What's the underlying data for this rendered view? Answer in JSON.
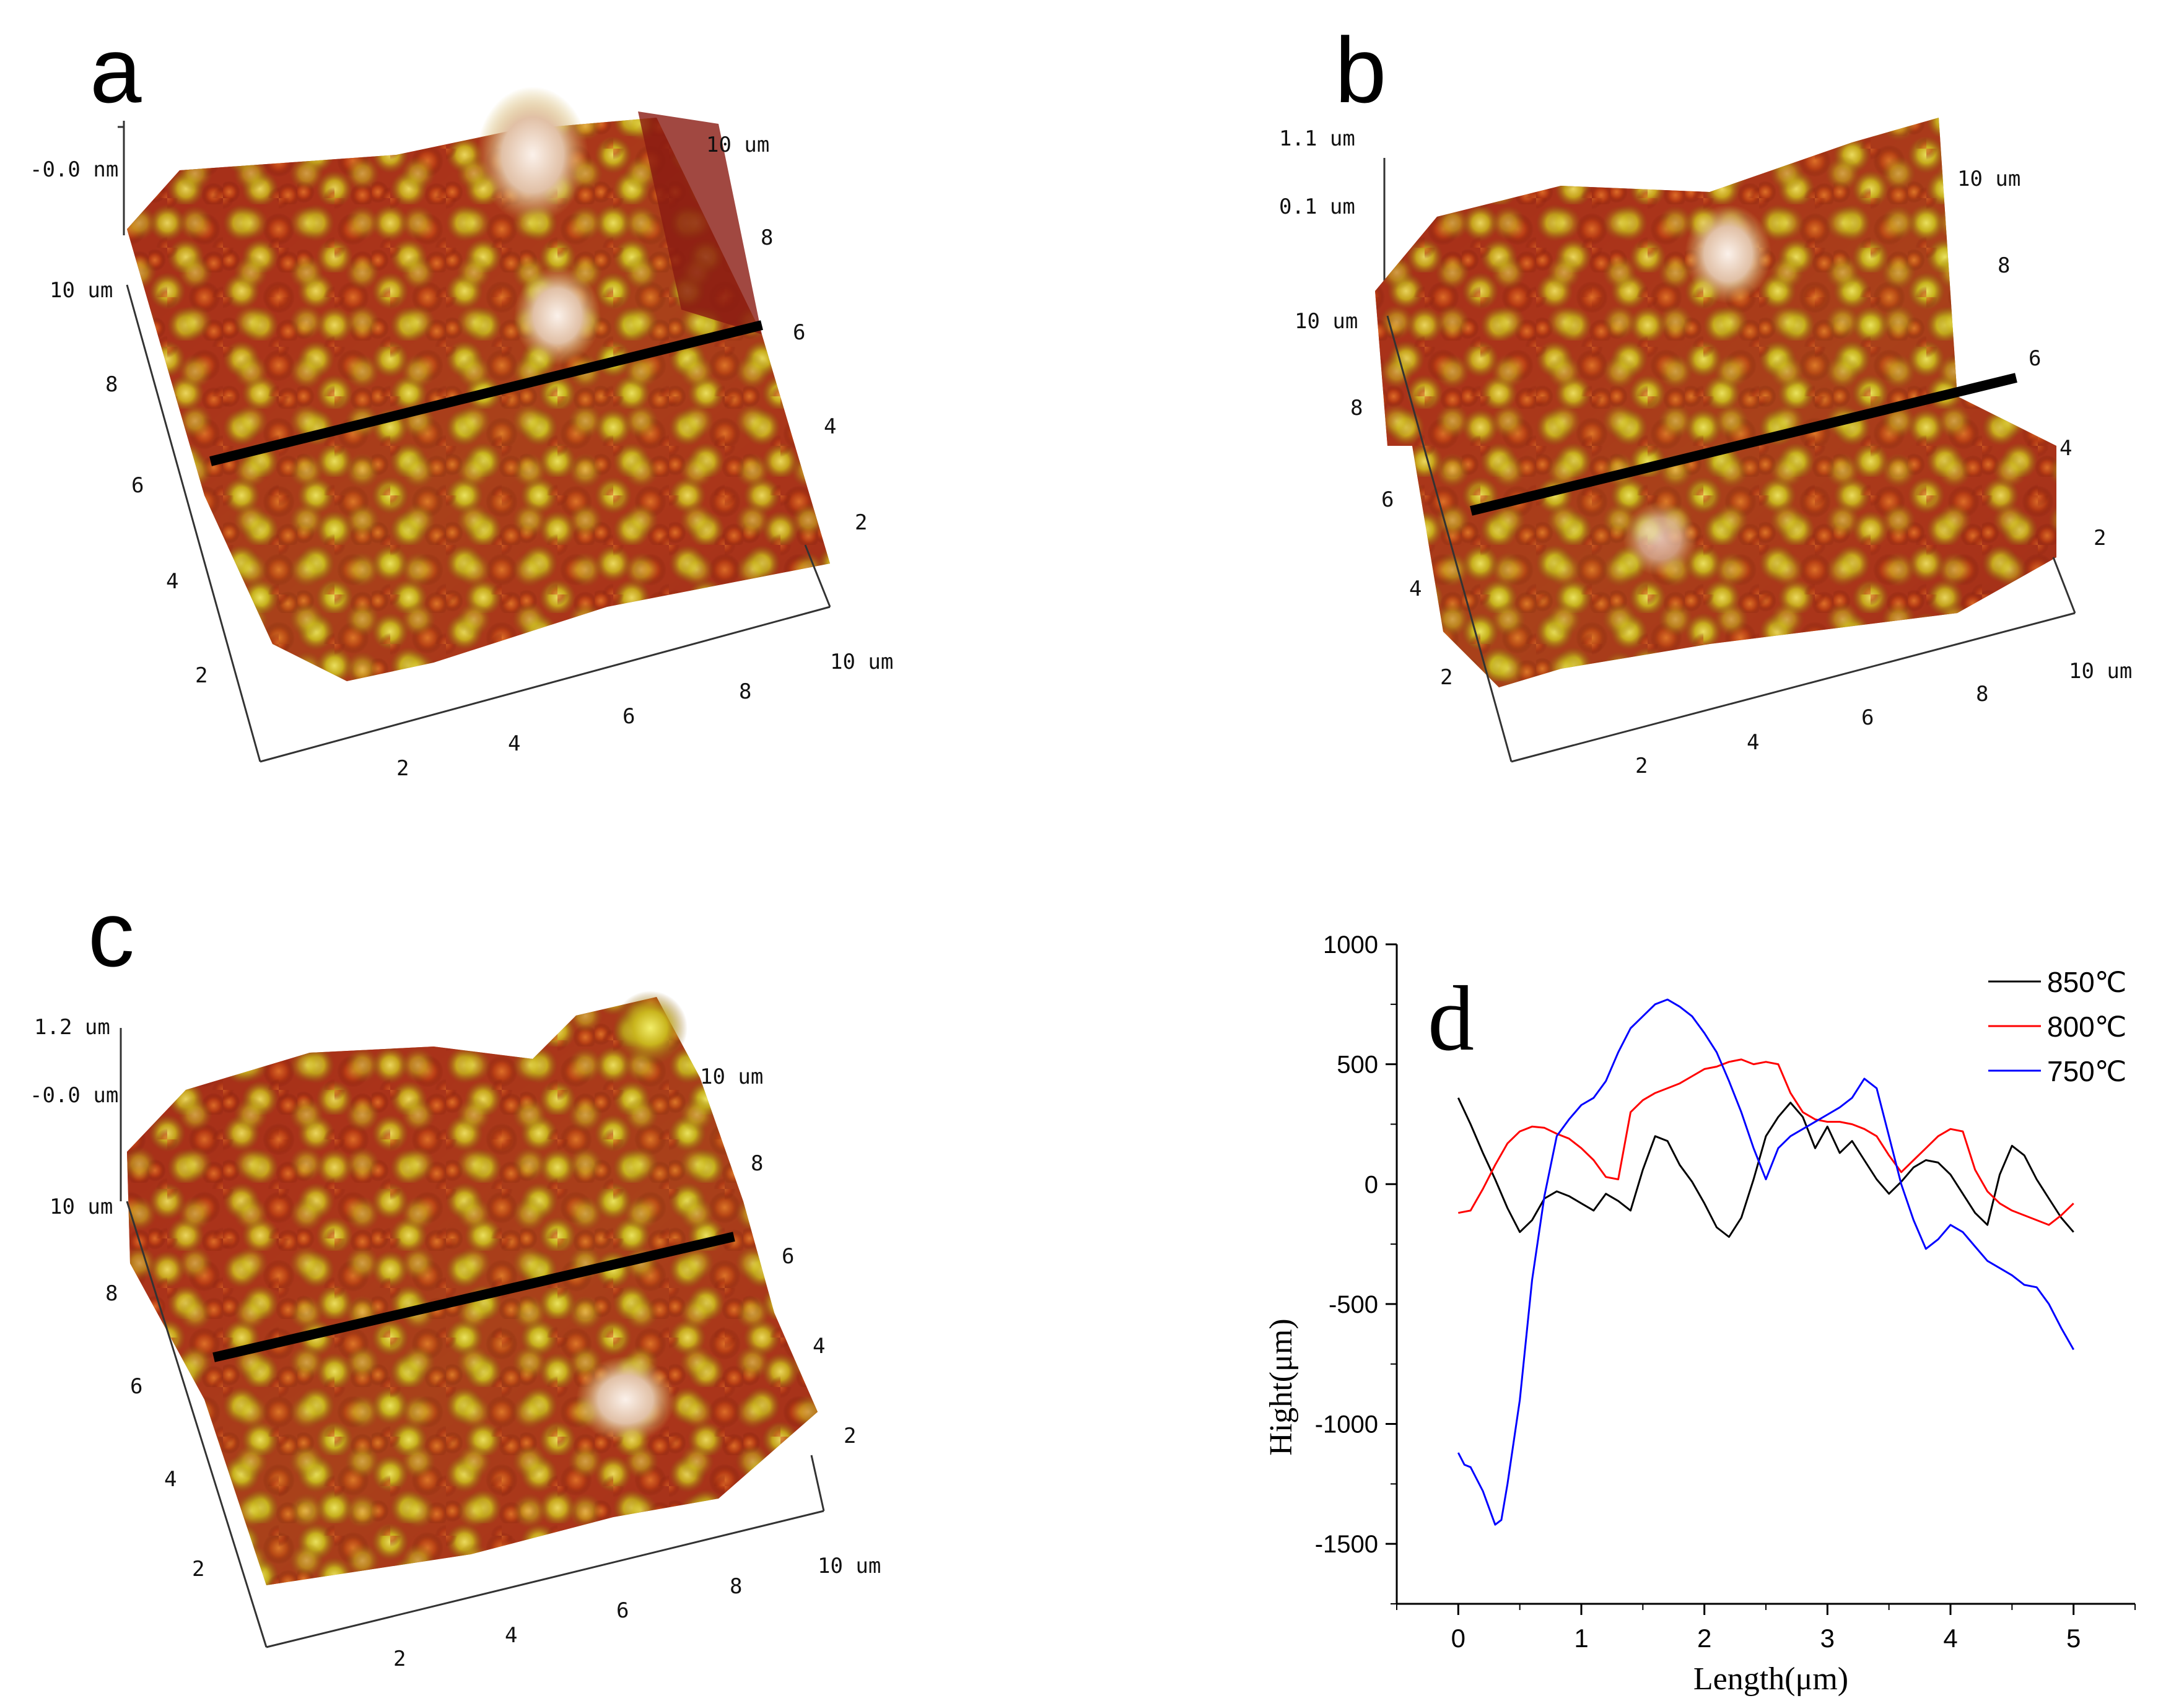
{
  "panels": {
    "a": {
      "letter": "a",
      "z_labels": [
        "-0.0 nm"
      ],
      "corner_labels": [
        "10 um",
        "10 um",
        "10 um"
      ],
      "left_ticks": [
        "8",
        "6",
        "4",
        "2"
      ],
      "bottom_ticks": [
        "2",
        "4",
        "6",
        "8"
      ],
      "right_ticks": [
        "8",
        "6",
        "4",
        "2"
      ]
    },
    "b": {
      "letter": "b",
      "z_labels": [
        "1.1 um",
        "0.1 um"
      ],
      "corner_labels": [
        "10 um",
        "10 um",
        "10 um"
      ],
      "left_ticks": [
        "8",
        "6",
        "4",
        "2"
      ],
      "bottom_ticks": [
        "2",
        "4",
        "6",
        "8"
      ],
      "right_ticks": [
        "8",
        "6",
        "4",
        "2"
      ]
    },
    "c": {
      "letter": "c",
      "z_labels": [
        "1.2 um",
        "-0.0 um"
      ],
      "corner_labels": [
        "10 um",
        "10 um",
        "10 um"
      ],
      "left_ticks": [
        "8",
        "6",
        "4",
        "2"
      ],
      "bottom_ticks": [
        "2",
        "4",
        "6",
        "8"
      ],
      "right_ticks": [
        "8",
        "6",
        "4",
        "2"
      ]
    }
  },
  "colors": {
    "surface_dark": "#8b1a10",
    "surface_mid": "#c8561a",
    "surface_light": "#d6c21e",
    "surface_peak": "#f3e6d8",
    "series_850": "#000000",
    "series_800": "#ff0000",
    "series_750": "#0000ff"
  },
  "chart_data": {
    "type": "line",
    "panel_letter": "d",
    "title": "",
    "xlabel": "Length(μm)",
    "ylabel": "Hight(μm)",
    "xlim": [
      -0.5,
      5.5
    ],
    "ylim": [
      -1750,
      1000
    ],
    "xticks": [
      "0",
      "1",
      "2",
      "3",
      "4",
      "5"
    ],
    "yticks": [
      "1000",
      "500",
      "0",
      "-500",
      "-1000",
      "-1500"
    ],
    "legend_position": "top-right",
    "series": [
      {
        "name": "850℃",
        "color": "#000000",
        "x": [
          0,
          0.1,
          0.2,
          0.3,
          0.4,
          0.5,
          0.6,
          0.7,
          0.8,
          0.9,
          1.0,
          1.1,
          1.2,
          1.3,
          1.4,
          1.5,
          1.6,
          1.7,
          1.8,
          1.9,
          2.0,
          2.1,
          2.2,
          2.3,
          2.4,
          2.5,
          2.6,
          2.7,
          2.8,
          2.9,
          3.0,
          3.1,
          3.2,
          3.3,
          3.4,
          3.5,
          3.6,
          3.7,
          3.8,
          3.9,
          4.0,
          4.1,
          4.2,
          4.3,
          4.4,
          4.5,
          4.6,
          4.7,
          4.8,
          4.9,
          5.0
        ],
        "values": [
          360,
          250,
          130,
          20,
          -100,
          -200,
          -150,
          -60,
          -30,
          -50,
          -80,
          -110,
          -40,
          -70,
          -110,
          60,
          200,
          180,
          80,
          10,
          -80,
          -180,
          -220,
          -140,
          20,
          200,
          280,
          340,
          280,
          150,
          240,
          130,
          180,
          100,
          20,
          -40,
          10,
          70,
          100,
          90,
          40,
          -40,
          -120,
          -170,
          40,
          160,
          120,
          20,
          -60,
          -140,
          -200
        ]
      },
      {
        "name": "800℃",
        "color": "#ff0000",
        "x": [
          0,
          0.1,
          0.2,
          0.3,
          0.4,
          0.5,
          0.6,
          0.7,
          0.8,
          0.9,
          1.0,
          1.1,
          1.2,
          1.3,
          1.4,
          1.5,
          1.6,
          1.7,
          1.8,
          1.9,
          2.0,
          2.1,
          2.2,
          2.3,
          2.4,
          2.5,
          2.6,
          2.7,
          2.8,
          2.9,
          3.0,
          3.1,
          3.2,
          3.3,
          3.4,
          3.5,
          3.6,
          3.7,
          3.8,
          3.9,
          4.0,
          4.1,
          4.2,
          4.3,
          4.4,
          4.5,
          4.6,
          4.7,
          4.8,
          4.9,
          5.0
        ],
        "values": [
          -120,
          -110,
          -20,
          80,
          170,
          220,
          240,
          235,
          210,
          190,
          150,
          100,
          30,
          20,
          300,
          350,
          380,
          400,
          420,
          450,
          480,
          490,
          510,
          520,
          500,
          510,
          500,
          380,
          300,
          270,
          260,
          260,
          250,
          230,
          200,
          120,
          50,
          100,
          150,
          200,
          230,
          220,
          60,
          -30,
          -80,
          -110,
          -130,
          -150,
          -170,
          -130,
          -80
        ]
      },
      {
        "name": "750℃",
        "color": "#0000ff",
        "x": [
          0,
          0.05,
          0.1,
          0.2,
          0.3,
          0.35,
          0.4,
          0.5,
          0.6,
          0.7,
          0.8,
          0.9,
          1.0,
          1.1,
          1.2,
          1.3,
          1.4,
          1.5,
          1.6,
          1.7,
          1.8,
          1.9,
          2.0,
          2.1,
          2.2,
          2.3,
          2.4,
          2.5,
          2.6,
          2.7,
          2.8,
          2.9,
          3.0,
          3.1,
          3.2,
          3.3,
          3.4,
          3.5,
          3.6,
          3.7,
          3.8,
          3.9,
          4.0,
          4.1,
          4.2,
          4.3,
          4.4,
          4.5,
          4.6,
          4.7,
          4.8,
          4.9,
          5.0
        ],
        "values": [
          -1120,
          -1170,
          -1180,
          -1280,
          -1420,
          -1400,
          -1250,
          -900,
          -400,
          -50,
          200,
          270,
          330,
          360,
          430,
          550,
          650,
          700,
          750,
          770,
          740,
          700,
          630,
          550,
          430,
          300,
          150,
          20,
          150,
          200,
          230,
          260,
          290,
          320,
          360,
          440,
          400,
          200,
          0,
          -150,
          -270,
          -230,
          -170,
          -200,
          -260,
          -320,
          -350,
          -380,
          -420,
          -430,
          -500,
          -600,
          -690
        ]
      }
    ]
  }
}
